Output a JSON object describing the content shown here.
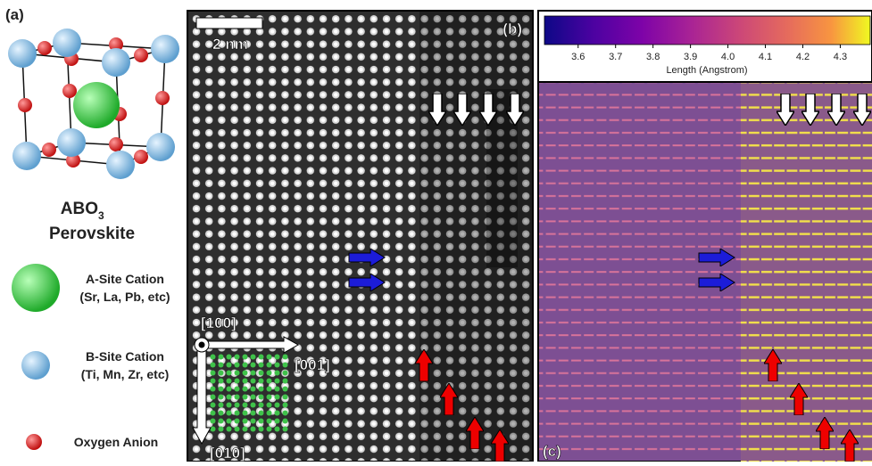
{
  "panel_a": {
    "label": "(a)",
    "title": "ABO",
    "title_subscript": "3",
    "title_line2": "Perovskite",
    "legend": [
      {
        "name": "A-Site Cation",
        "detail": "(Sr, La, Pb, etc)"
      },
      {
        "name": "B-Site Cation",
        "detail": "(Ti, Mn, Zr, etc)"
      },
      {
        "name": "Oxygen Anion"
      }
    ]
  },
  "panel_b": {
    "label": "(b)",
    "scale_bar": "2 nm",
    "directions": [
      "[100]",
      "[001]",
      "[010]"
    ]
  },
  "panel_c": {
    "label": "(c)",
    "colorbar": {
      "label": "Length (Angstrom)",
      "lim": [
        3.51,
        4.38
      ],
      "ticks": [
        3.6,
        3.7,
        3.8,
        3.9,
        {
          "value": 4,
          "label": "4.0"
        },
        4.1,
        4.2,
        4.3
      ]
    }
  }
}
